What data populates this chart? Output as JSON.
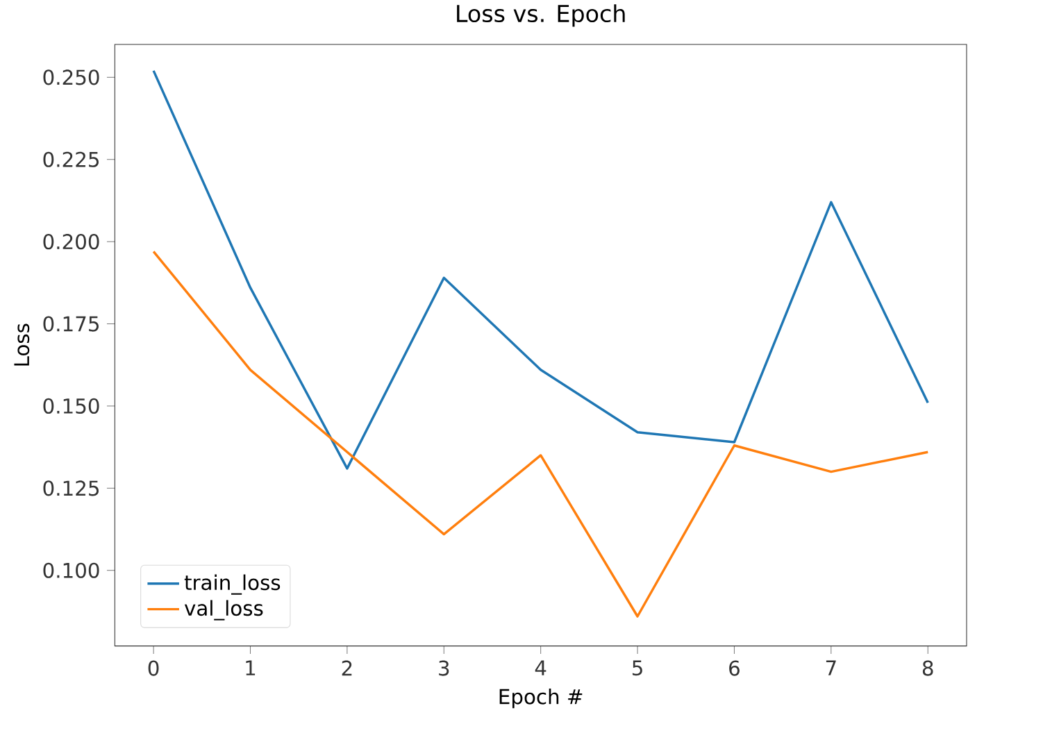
{
  "chart_data": {
    "type": "line",
    "title": "Loss vs. Epoch",
    "xlabel": "Epoch #",
    "ylabel": "Loss",
    "x": [
      0,
      1,
      2,
      3,
      4,
      5,
      6,
      7,
      8
    ],
    "series": [
      {
        "name": "train_loss",
        "color": "#1f77b4",
        "values": [
          0.252,
          0.186,
          0.131,
          0.189,
          0.161,
          0.142,
          0.139,
          0.212,
          0.151
        ]
      },
      {
        "name": "val_loss",
        "color": "#ff7f0e",
        "values": [
          0.197,
          0.161,
          0.136,
          0.111,
          0.135,
          0.086,
          0.138,
          0.13,
          0.136
        ]
      }
    ],
    "xlim": [
      -0.4,
      8.4
    ],
    "ylim": [
      0.077,
      0.26
    ],
    "xticks": [
      0,
      1,
      2,
      3,
      4,
      5,
      6,
      7,
      8
    ],
    "yticks": [
      {
        "value": 0.1,
        "label": "0.100"
      },
      {
        "value": 0.125,
        "label": "0.125"
      },
      {
        "value": 0.15,
        "label": "0.150"
      },
      {
        "value": 0.175,
        "label": "0.175"
      },
      {
        "value": 0.2,
        "label": "0.200"
      },
      {
        "value": 0.225,
        "label": "0.225"
      },
      {
        "value": 0.25,
        "label": "0.250"
      }
    ],
    "legend": "bottom left",
    "grid": false,
    "marker": "none",
    "line_style": "solid"
  }
}
